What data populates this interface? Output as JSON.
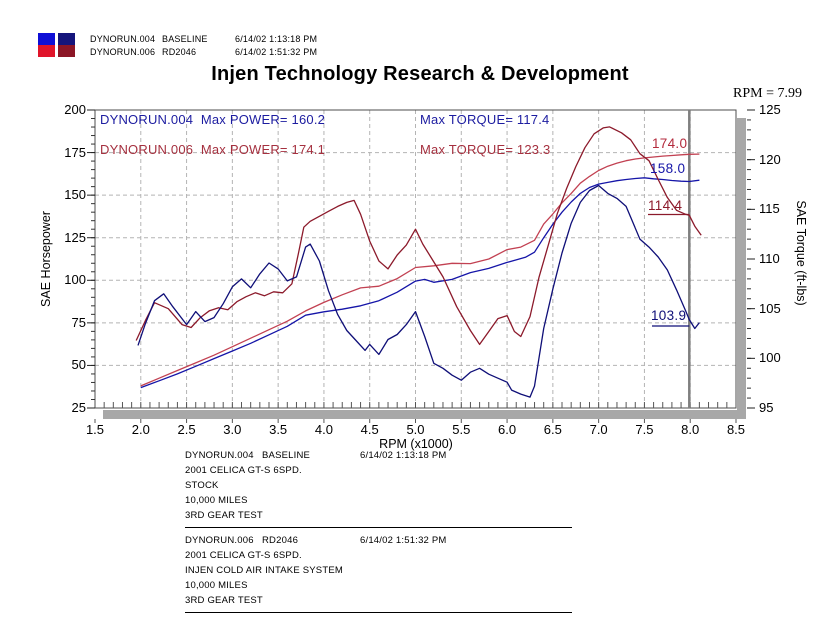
{
  "header": {
    "runs": [
      {
        "file": "DYNORUN.004",
        "label": "BASELINE",
        "datetime": "6/14/02 1:13:18 PM"
      },
      {
        "file": "DYNORUN.006",
        "label": "RD2046",
        "datetime": "6/14/02 1:51:32 PM"
      }
    ],
    "legend_colors": {
      "power_blue": "#0f0fd6",
      "power_red": "#e0142a",
      "torque_blue": "#15157c",
      "torque_red": "#8c1626"
    }
  },
  "title": "Injen Technology Research & Development",
  "cursor_readout": "RPM = 7.99",
  "annotations": {
    "r1_left": "DYNORUN.004  Max POWER= 160.2",
    "r1_right": "Max TORQUE= 117.4",
    "r2_left": "DYNORUN.006  Max POWER= 174.1",
    "r2_right": "Max TORQUE= 123.3"
  },
  "chart_data": {
    "type": "line",
    "title": "Injen Technology Research & Development",
    "xlabel": "RPM (x1000)",
    "ylabel_left": "SAE Horsepower",
    "ylabel_right": "SAE Torque (ft-lbs)",
    "xlim": [
      1.5,
      8.5
    ],
    "ylim_left": [
      25,
      200
    ],
    "ylim_right": [
      95,
      125
    ],
    "grid": "dashed",
    "legend_position": "none",
    "x_tick_labels": [
      "1.5",
      "2.0",
      "2.5",
      "3.0",
      "3.5",
      "4.0",
      "4.5",
      "5.0",
      "5.5",
      "6.0",
      "6.5",
      "7.0",
      "7.5",
      "8.0",
      "8.5"
    ],
    "y_tick_labels_left": [
      "200",
      "175",
      "150",
      "125",
      "100",
      "75",
      "50",
      "25"
    ],
    "y_tick_labels_right": [
      "125",
      "120",
      "115",
      "110",
      "105",
      "100",
      "95"
    ],
    "cursor_rpm": 7.99,
    "max_values": {
      "power_004": 160.2,
      "torque_004": 117.4,
      "power_006": 174.1,
      "torque_006": 123.3
    },
    "cursor_values": {
      "power_006": "174.0",
      "power_004": "158.0",
      "torque_006": "114.4",
      "torque_004": "103.9"
    },
    "series": [
      {
        "name": "DYNORUN.006 SAE Horsepower",
        "axis": "left",
        "color": "#c24152",
        "points": [
          [
            2.0,
            38
          ],
          [
            2.2,
            42.5
          ],
          [
            2.4,
            47
          ],
          [
            2.6,
            51.5
          ],
          [
            2.8,
            56
          ],
          [
            3.0,
            61
          ],
          [
            3.2,
            66
          ],
          [
            3.4,
            71
          ],
          [
            3.6,
            76
          ],
          [
            3.8,
            82
          ],
          [
            4.0,
            87
          ],
          [
            4.2,
            91.5
          ],
          [
            4.4,
            95.5
          ],
          [
            4.6,
            96.5
          ],
          [
            4.8,
            101
          ],
          [
            5.0,
            107.5
          ],
          [
            5.2,
            108.5
          ],
          [
            5.4,
            110
          ],
          [
            5.6,
            109.8
          ],
          [
            5.8,
            112.5
          ],
          [
            6.0,
            118
          ],
          [
            6.15,
            119.5
          ],
          [
            6.3,
            123.5
          ],
          [
            6.4,
            133
          ],
          [
            6.5,
            139
          ],
          [
            6.6,
            145.5
          ],
          [
            6.7,
            151
          ],
          [
            6.8,
            157
          ],
          [
            6.9,
            161
          ],
          [
            7.0,
            164.5
          ],
          [
            7.1,
            167
          ],
          [
            7.2,
            168.8
          ],
          [
            7.3,
            170.2
          ],
          [
            7.4,
            171.2
          ],
          [
            7.5,
            171.9
          ],
          [
            7.6,
            172.4
          ],
          [
            7.7,
            172.9
          ],
          [
            7.8,
            173.3
          ],
          [
            7.9,
            173.7
          ],
          [
            7.99,
            174.0
          ],
          [
            8.1,
            174.1
          ]
        ]
      },
      {
        "name": "DYNORUN.004 SAE Horsepower",
        "axis": "left",
        "color": "#1515a8",
        "points": [
          [
            2.0,
            37
          ],
          [
            2.2,
            41
          ],
          [
            2.4,
            45
          ],
          [
            2.6,
            49.5
          ],
          [
            2.8,
            54
          ],
          [
            3.0,
            58.5
          ],
          [
            3.2,
            63
          ],
          [
            3.4,
            68
          ],
          [
            3.6,
            73
          ],
          [
            3.8,
            79.5
          ],
          [
            4.0,
            81.5
          ],
          [
            4.2,
            83
          ],
          [
            4.4,
            85
          ],
          [
            4.6,
            88
          ],
          [
            4.8,
            93
          ],
          [
            5.0,
            99.5
          ],
          [
            5.1,
            100.5
          ],
          [
            5.2,
            98.8
          ],
          [
            5.4,
            100.5
          ],
          [
            5.6,
            104.5
          ],
          [
            5.8,
            107
          ],
          [
            6.0,
            110.5
          ],
          [
            6.1,
            112
          ],
          [
            6.2,
            113.5
          ],
          [
            6.3,
            116.5
          ],
          [
            6.4,
            125
          ],
          [
            6.5,
            133
          ],
          [
            6.6,
            140
          ],
          [
            6.7,
            146
          ],
          [
            6.8,
            151
          ],
          [
            6.9,
            154.5
          ],
          [
            7.0,
            156.5
          ],
          [
            7.1,
            157.5
          ],
          [
            7.2,
            158.5
          ],
          [
            7.3,
            159.2
          ],
          [
            7.4,
            159.8
          ],
          [
            7.5,
            160.2
          ],
          [
            7.6,
            159.6
          ],
          [
            7.7,
            159.2
          ],
          [
            7.8,
            158.6
          ],
          [
            7.9,
            158.2
          ],
          [
            7.99,
            158.0
          ],
          [
            8.1,
            158.8
          ]
        ]
      },
      {
        "name": "DYNORUN.006 SAE Torque",
        "axis": "right",
        "color": "#8c1a2b",
        "points": [
          [
            1.95,
            101.8
          ],
          [
            2.05,
            103.8
          ],
          [
            2.15,
            105.6
          ],
          [
            2.3,
            105.0
          ],
          [
            2.45,
            103.4
          ],
          [
            2.55,
            103.1
          ],
          [
            2.65,
            104.1
          ],
          [
            2.75,
            104.8
          ],
          [
            2.85,
            105.1
          ],
          [
            2.95,
            104.9
          ],
          [
            3.05,
            105.7
          ],
          [
            3.15,
            106.2
          ],
          [
            3.25,
            106.6
          ],
          [
            3.35,
            106.3
          ],
          [
            3.45,
            106.7
          ],
          [
            3.55,
            106.6
          ],
          [
            3.65,
            107.5
          ],
          [
            3.72,
            110.5
          ],
          [
            3.78,
            113.2
          ],
          [
            3.85,
            113.8
          ],
          [
            3.95,
            114.3
          ],
          [
            4.05,
            114.8
          ],
          [
            4.15,
            115.3
          ],
          [
            4.25,
            115.7
          ],
          [
            4.33,
            115.9
          ],
          [
            4.4,
            114.5
          ],
          [
            4.5,
            111.8
          ],
          [
            4.6,
            109.8
          ],
          [
            4.7,
            109.0
          ],
          [
            4.8,
            110.4
          ],
          [
            4.9,
            111.4
          ],
          [
            5.0,
            113.0
          ],
          [
            5.08,
            111.5
          ],
          [
            5.18,
            110.0
          ],
          [
            5.3,
            108.2
          ],
          [
            5.45,
            105.2
          ],
          [
            5.6,
            102.8
          ],
          [
            5.7,
            101.4
          ],
          [
            5.8,
            102.7
          ],
          [
            5.9,
            104.0
          ],
          [
            6.0,
            104.3
          ],
          [
            6.08,
            102.7
          ],
          [
            6.15,
            102.2
          ],
          [
            6.25,
            104.2
          ],
          [
            6.35,
            108.2
          ],
          [
            6.45,
            111.4
          ],
          [
            6.55,
            114.6
          ],
          [
            6.65,
            117.1
          ],
          [
            6.75,
            119.3
          ],
          [
            6.85,
            121.2
          ],
          [
            6.95,
            122.6
          ],
          [
            7.05,
            123.2
          ],
          [
            7.12,
            123.3
          ],
          [
            7.25,
            122.7
          ],
          [
            7.35,
            122.0
          ],
          [
            7.45,
            120.6
          ],
          [
            7.55,
            119.9
          ],
          [
            7.65,
            118.0
          ],
          [
            7.75,
            116.2
          ],
          [
            7.85,
            114.9
          ],
          [
            7.95,
            114.5
          ],
          [
            7.99,
            114.4
          ],
          [
            8.05,
            113.3
          ],
          [
            8.12,
            112.4
          ]
        ]
      },
      {
        "name": "DYNORUN.004 SAE Torque",
        "axis": "right",
        "color": "#0f0f78",
        "points": [
          [
            1.97,
            101.3
          ],
          [
            2.05,
            103.5
          ],
          [
            2.15,
            105.8
          ],
          [
            2.25,
            106.5
          ],
          [
            2.35,
            105.2
          ],
          [
            2.5,
            103.4
          ],
          [
            2.6,
            104.7
          ],
          [
            2.7,
            103.7
          ],
          [
            2.8,
            104.1
          ],
          [
            2.9,
            105.5
          ],
          [
            3.0,
            107.2
          ],
          [
            3.1,
            108.0
          ],
          [
            3.2,
            107.1
          ],
          [
            3.3,
            108.5
          ],
          [
            3.4,
            109.6
          ],
          [
            3.5,
            109.0
          ],
          [
            3.6,
            107.8
          ],
          [
            3.7,
            108.2
          ],
          [
            3.8,
            111.2
          ],
          [
            3.85,
            111.5
          ],
          [
            3.95,
            109.8
          ],
          [
            4.05,
            106.8
          ],
          [
            4.15,
            104.4
          ],
          [
            4.25,
            102.8
          ],
          [
            4.35,
            101.8
          ],
          [
            4.45,
            100.8
          ],
          [
            4.5,
            101.4
          ],
          [
            4.6,
            100.4
          ],
          [
            4.7,
            101.9
          ],
          [
            4.8,
            102.4
          ],
          [
            4.9,
            103.4
          ],
          [
            5.0,
            104.7
          ],
          [
            5.1,
            102.2
          ],
          [
            5.2,
            99.5
          ],
          [
            5.3,
            99.0
          ],
          [
            5.4,
            98.3
          ],
          [
            5.5,
            97.8
          ],
          [
            5.6,
            98.6
          ],
          [
            5.7,
            99.0
          ],
          [
            5.8,
            98.4
          ],
          [
            5.9,
            98.0
          ],
          [
            6.0,
            97.6
          ],
          [
            6.05,
            96.8
          ],
          [
            6.15,
            96.4
          ],
          [
            6.25,
            96.1
          ],
          [
            6.3,
            97.2
          ],
          [
            6.4,
            103.0
          ],
          [
            6.5,
            107.0
          ],
          [
            6.6,
            110.6
          ],
          [
            6.7,
            113.6
          ],
          [
            6.8,
            115.7
          ],
          [
            6.9,
            116.9
          ],
          [
            7.0,
            117.4
          ],
          [
            7.1,
            116.6
          ],
          [
            7.2,
            116.1
          ],
          [
            7.3,
            115.3
          ],
          [
            7.35,
            114.2
          ],
          [
            7.45,
            112.0
          ],
          [
            7.55,
            111.2
          ],
          [
            7.65,
            110.2
          ],
          [
            7.75,
            108.9
          ],
          [
            7.85,
            106.9
          ],
          [
            7.95,
            104.8
          ],
          [
            7.99,
            103.9
          ],
          [
            8.05,
            103.0
          ],
          [
            8.1,
            103.6
          ]
        ]
      }
    ]
  },
  "footer_blocks": [
    {
      "file": "DYNORUN.004",
      "label": "BASELINE",
      "datetime": "6/14/02 1:13:18 PM",
      "lines": [
        "2001 CELICA GT-S 6SPD.",
        "STOCK",
        "10,000 MILES",
        "3RD GEAR TEST"
      ]
    },
    {
      "file": "DYNORUN.006",
      "label": "RD2046",
      "datetime": "6/14/02 1:51:32 PM",
      "lines": [
        "2001 CELICA GT-S 6SPD.",
        "INJEN COLD AIR INTAKE SYSTEM",
        "10,000 MILES",
        "3RD GEAR TEST"
      ]
    }
  ]
}
